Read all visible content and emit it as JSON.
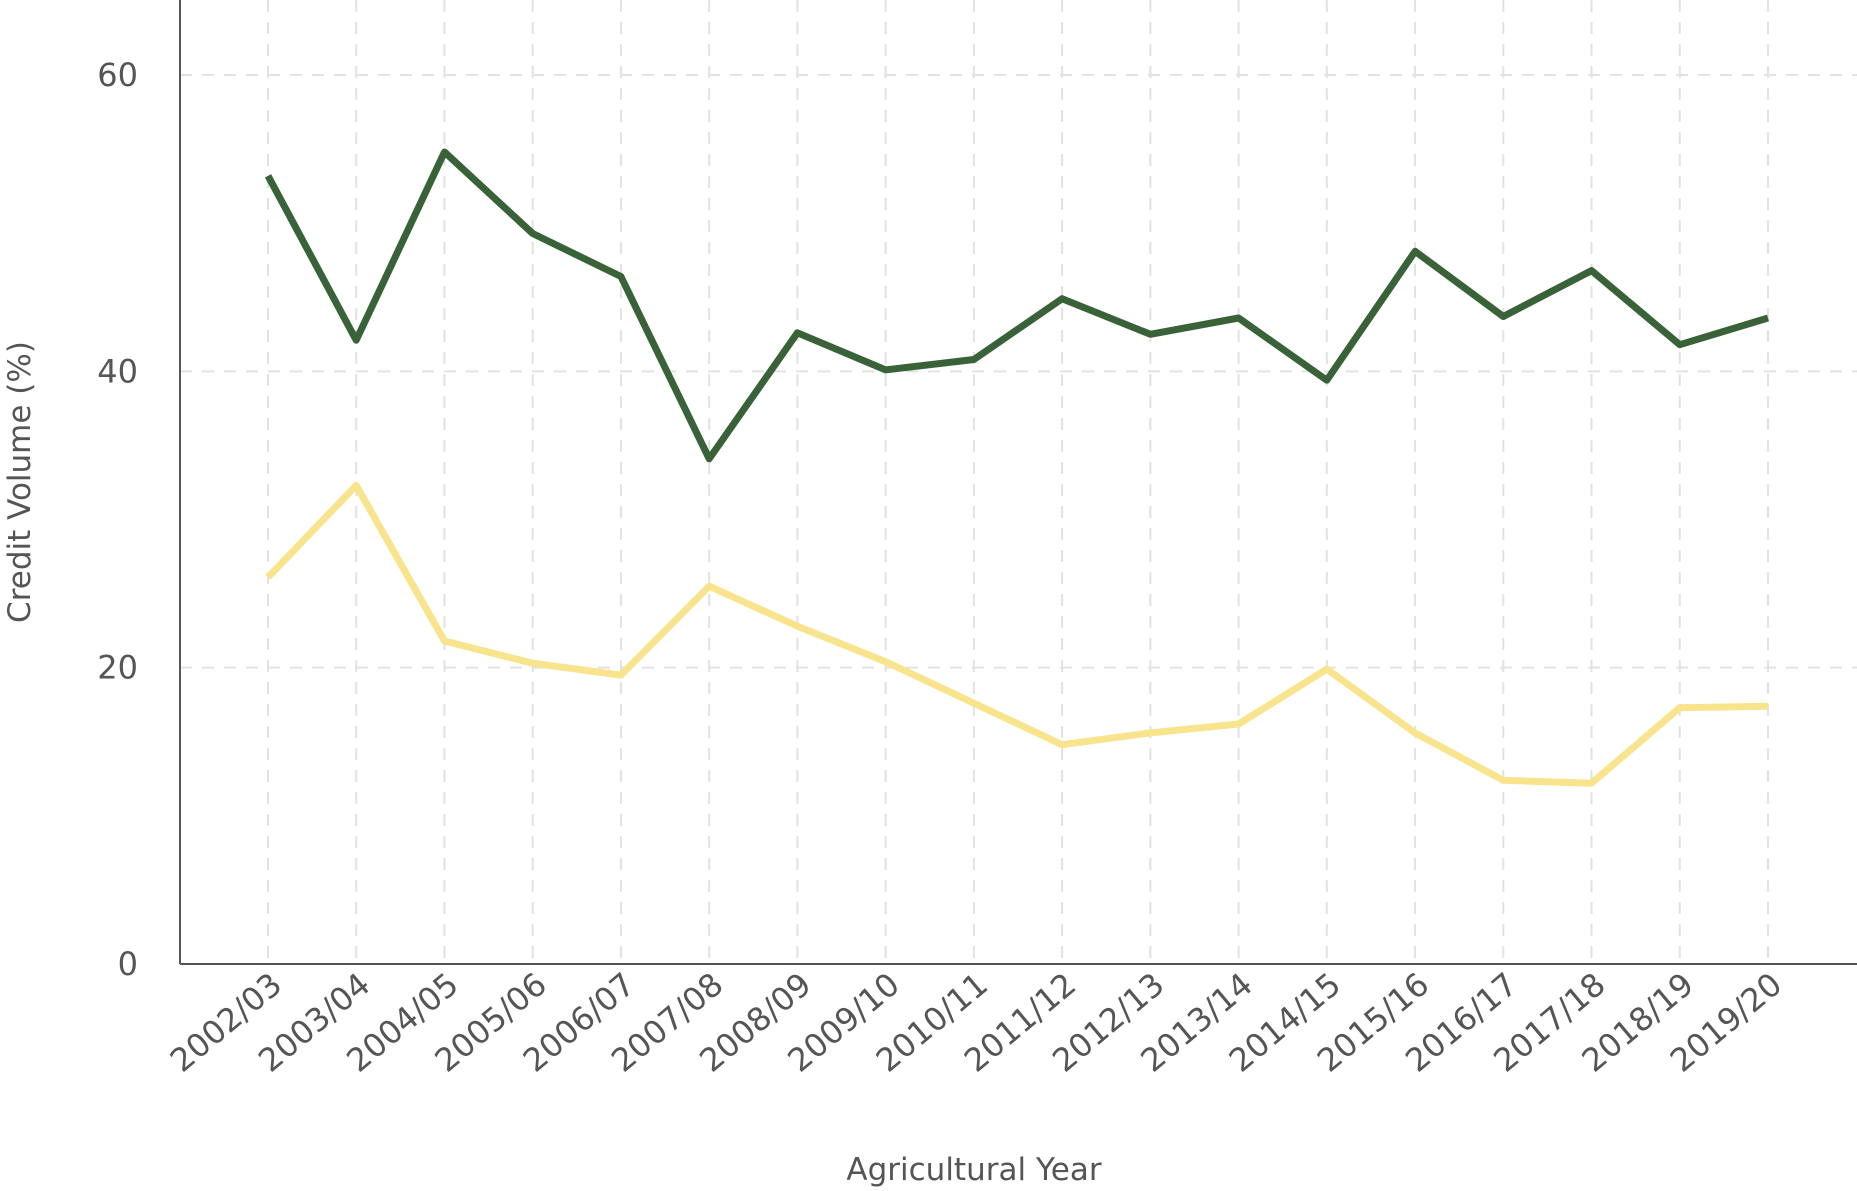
{
  "chart_data": {
    "type": "line",
    "title": "",
    "xlabel": "Agricultural Year",
    "ylabel": "Credit Volume (%)",
    "ylim": [
      0,
      66
    ],
    "yticks": [
      0,
      20,
      40,
      60
    ],
    "grid": true,
    "categories": [
      "2002/03",
      "2003/04",
      "2004/05",
      "2005/06",
      "2006/07",
      "2007/08",
      "2008/09",
      "2009/10",
      "2010/11",
      "2011/12",
      "2012/13",
      "2013/14",
      "2014/15",
      "2015/16",
      "2016/17",
      "2017/18",
      "2018/19",
      "2019/20"
    ],
    "series": [
      {
        "color": "#3a6239",
        "values": [
          53.2,
          42.1,
          54.8,
          49.3,
          46.4,
          34.1,
          42.6,
          40.1,
          40.8,
          44.9,
          42.5,
          43.6,
          39.4,
          48.1,
          43.7,
          46.8,
          41.8,
          43.6
        ]
      },
      {
        "color": "#f7e48c",
        "values": [
          26.1,
          32.3,
          21.8,
          20.3,
          19.5,
          25.5,
          22.8,
          20.4,
          17.6,
          14.8,
          15.6,
          16.2,
          19.9,
          15.6,
          12.4,
          12.2,
          17.3,
          17.4
        ]
      }
    ]
  }
}
